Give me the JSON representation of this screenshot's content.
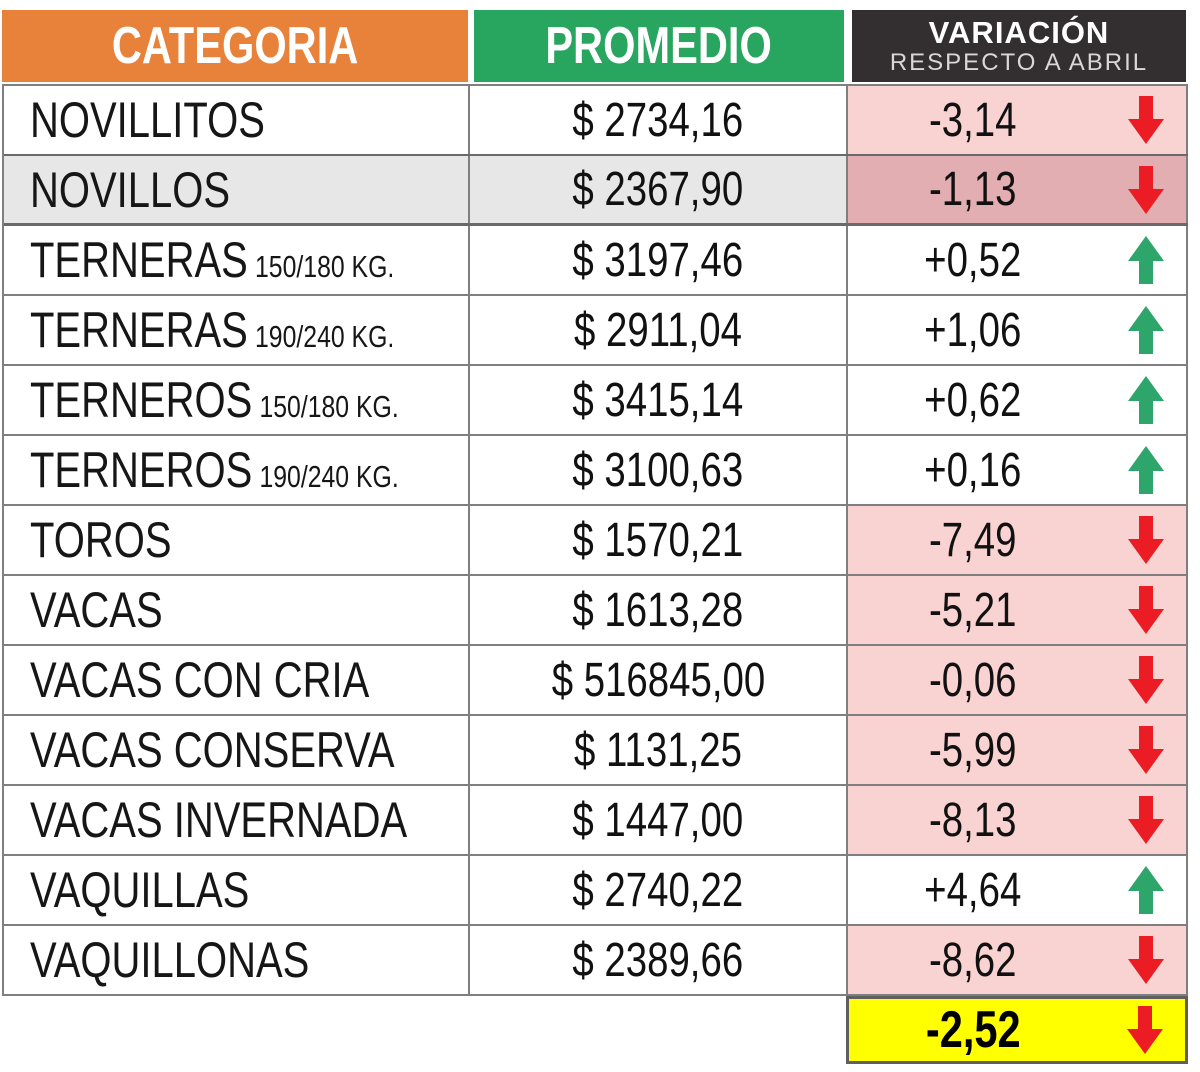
{
  "table": {
    "headers": {
      "category": "CATEGORIA",
      "average": "PROMEDIO",
      "variation_line1": "VARIACIÓN",
      "variation_line2": "RESPECTO A ABRIL"
    },
    "rows": [
      {
        "category": "NOVILLITOS",
        "weight": "",
        "average": "$ 2734,16",
        "variation": "-3,14",
        "direction": "down",
        "highlight": false
      },
      {
        "category": "NOVILLOS",
        "weight": "",
        "average": "$ 2367,90",
        "variation": "-1,13",
        "direction": "down",
        "highlight": true
      },
      {
        "category": "TERNERAS",
        "weight": "150/180 KG.",
        "average": "$ 3197,46",
        "variation": "+0,52",
        "direction": "up",
        "highlight": false
      },
      {
        "category": "TERNERAS",
        "weight": "190/240 KG.",
        "average": "$ 2911,04",
        "variation": "+1,06",
        "direction": "up",
        "highlight": false
      },
      {
        "category": "TERNEROS",
        "weight": "150/180 KG.",
        "average": "$ 3415,14",
        "variation": "+0,62",
        "direction": "up",
        "highlight": false
      },
      {
        "category": "TERNEROS",
        "weight": "190/240 KG.",
        "average": "$ 3100,63",
        "variation": "+0,16",
        "direction": "up",
        "highlight": false
      },
      {
        "category": "TOROS",
        "weight": "",
        "average": "$ 1570,21",
        "variation": "-7,49",
        "direction": "down",
        "highlight": false
      },
      {
        "category": "VACAS",
        "weight": "",
        "average": "$ 1613,28",
        "variation": "-5,21",
        "direction": "down",
        "highlight": false
      },
      {
        "category": "VACAS CON CRIA",
        "weight": "",
        "average": "$ 516845,00",
        "variation": "-0,06",
        "direction": "down",
        "highlight": false
      },
      {
        "category": "VACAS CONSERVA",
        "weight": "",
        "average": "$ 1131,25",
        "variation": "-5,99",
        "direction": "down",
        "highlight": false
      },
      {
        "category": "VACAS INVERNADA",
        "weight": "",
        "average": "$ 1447,00",
        "variation": "-8,13",
        "direction": "down",
        "highlight": false
      },
      {
        "category": "VAQUILLAS",
        "weight": "",
        "average": "$ 2740,22",
        "variation": "+4,64",
        "direction": "up",
        "highlight": false
      },
      {
        "category": "VAQUILLONAS",
        "weight": "",
        "average": "$ 2389,66",
        "variation": "-8,62",
        "direction": "down",
        "highlight": false
      }
    ],
    "footer": {
      "variation": "-2,52",
      "direction": "down"
    }
  },
  "colors": {
    "header_orange": "#E8823A",
    "header_green": "#28A55F",
    "header_dark": "#332E30",
    "border_gray": "#7F7F7F",
    "negative_cell_pink": "#F9D2D2",
    "negative_cell_pink_dark": "#E2AEB1",
    "highlight_row_gray": "#E7E7E7",
    "total_cell_yellow": "#FFFF00",
    "arrow_down_red": "#EC1C24",
    "arrow_up_green": "#2EA56A"
  },
  "icons": {
    "down": "down-arrow-icon",
    "up": "up-arrow-icon"
  },
  "chart_data": {
    "type": "table",
    "title": "VARIACIÓN RESPECTO A ABRIL",
    "columns": [
      "CATEGORIA",
      "PROMEDIO",
      "VARIACIÓN RESPECTO A ABRIL"
    ],
    "rows": [
      [
        "NOVILLITOS",
        2734.16,
        -3.14
      ],
      [
        "NOVILLOS",
        2367.9,
        -1.13
      ],
      [
        "TERNERAS 150/180 KG.",
        3197.46,
        0.52
      ],
      [
        "TERNERAS 190/240 KG.",
        2911.04,
        1.06
      ],
      [
        "TERNEROS 150/180 KG.",
        3415.14,
        0.62
      ],
      [
        "TERNEROS 190/240 KG.",
        3100.63,
        0.16
      ],
      [
        "TOROS",
        1570.21,
        -7.49
      ],
      [
        "VACAS",
        1613.28,
        -5.21
      ],
      [
        "VACAS CON CRIA",
        516845.0,
        -0.06
      ],
      [
        "VACAS CONSERVA",
        1131.25,
        -5.99
      ],
      [
        "VACAS INVERNADA",
        1447.0,
        -8.13
      ],
      [
        "VAQUILLAS",
        2740.22,
        4.64
      ],
      [
        "VAQUILLONAS",
        2389.66,
        -8.62
      ]
    ],
    "overall_variation": -2.52,
    "currency": "$"
  }
}
